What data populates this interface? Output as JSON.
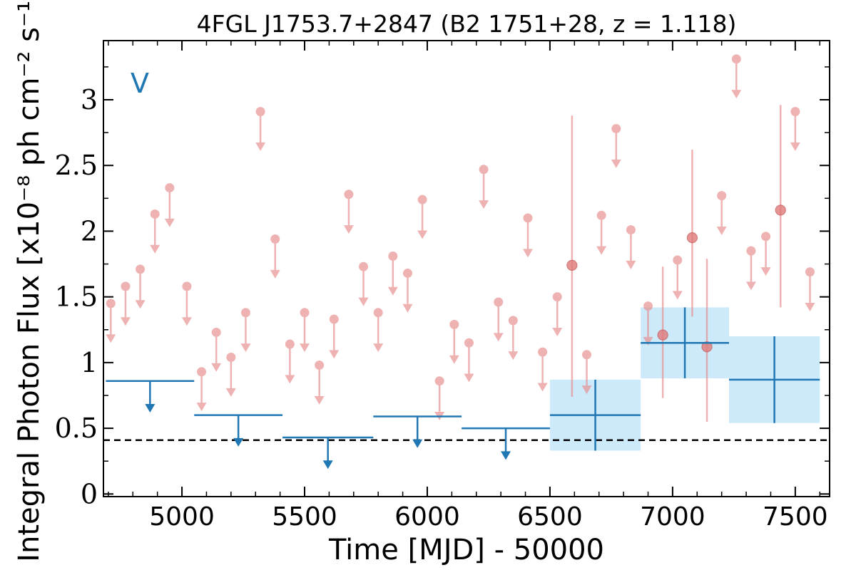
{
  "chart_data": {
    "type": "scatter",
    "title": "4FGL J1753.7+2847 (B2 1751+28, z = 1.118)",
    "xlabel": "Time [MJD] - 50000",
    "ylabel": "Integral Photon Flux [x10⁻⁸ ph cm⁻² s⁻¹]",
    "band_label": "V",
    "xlim": [
      4680,
      7640
    ],
    "ylim": [
      -0.02,
      3.45
    ],
    "xticks": [
      5000,
      5500,
      6000,
      6500,
      7000,
      7500
    ],
    "yticks": [
      0,
      0.5,
      1,
      1.5,
      2,
      2.5,
      3
    ],
    "ytick_labels": [
      "0",
      "0.5",
      "1",
      "1.5",
      "2",
      "2.5",
      "3"
    ],
    "grid": false,
    "reference_line": {
      "y": 0.41,
      "style": "dashed",
      "color": "#000000"
    },
    "colors": {
      "short_bin": "#e88a8a",
      "long_bin": "#1f77b4",
      "long_bin_fill": "#cdeafb"
    },
    "series": [
      {
        "type": "upper_limit",
        "x": [
          4710,
          4770,
          4830,
          4890,
          4950,
          5020,
          5080,
          5140,
          5200,
          5260,
          5320,
          5380,
          5440,
          5500,
          5560,
          5620,
          5680,
          5740,
          5800,
          5860,
          5920,
          5980,
          6050,
          6110,
          6170,
          6230,
          6290,
          6350,
          6410,
          6470,
          6530,
          6650,
          6710,
          6770,
          6830,
          6900,
          7020,
          7200,
          7260,
          7320,
          7380,
          7500,
          7560
        ],
        "y": [
          1.45,
          1.58,
          1.71,
          2.13,
          2.33,
          1.58,
          0.93,
          1.23,
          1.04,
          1.38,
          2.91,
          1.94,
          1.14,
          1.38,
          0.98,
          1.33,
          2.28,
          1.73,
          1.38,
          1.81,
          1.68,
          2.24,
          0.86,
          1.29,
          1.15,
          2.47,
          1.46,
          1.32,
          2.1,
          1.08,
          1.5,
          1.06,
          2.12,
          2.78,
          2.01,
          1.43,
          1.78,
          2.27,
          3.31,
          1.85,
          1.96,
          2.91,
          1.69
        ]
      },
      {
        "type": "detection",
        "x": [
          6590,
          6960,
          7080,
          7140,
          7440
        ],
        "y": [
          1.74,
          1.21,
          1.95,
          1.12,
          2.16
        ],
        "err_low": [
          1.0,
          0.48,
          0.6,
          0.57,
          0.74
        ],
        "err_high": [
          1.14,
          0.52,
          0.67,
          0.67,
          0.8
        ]
      },
      {
        "type": "long_bin_upper_limit",
        "x_start": [
          4690,
          5050,
          5410,
          5780,
          6140
        ],
        "x_end": [
          5050,
          5410,
          5780,
          6140,
          6500
        ],
        "y": [
          0.86,
          0.6,
          0.43,
          0.59,
          0.5
        ]
      },
      {
        "type": "long_bin_detection",
        "x_start": [
          6500,
          6870,
          7230
        ],
        "x_end": [
          6870,
          7230,
          7600
        ],
        "y": [
          0.6,
          1.15,
          0.87
        ],
        "err": [
          0.27,
          0.27,
          0.33
        ]
      }
    ]
  }
}
